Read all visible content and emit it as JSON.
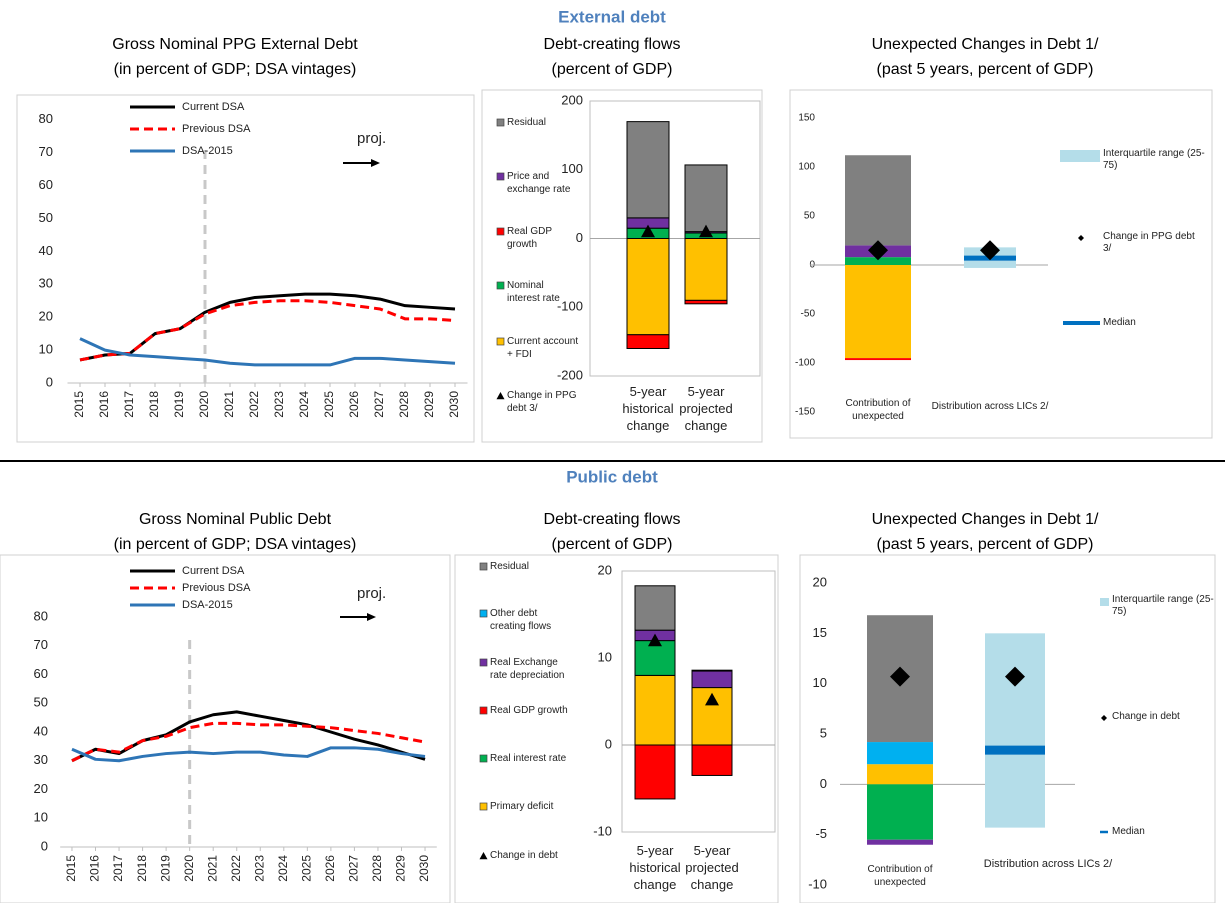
{
  "sections": [
    "External debt",
    "Public debt"
  ],
  "chart_data": [
    {
      "type": "line",
      "title": "Gross Nominal PPG External Debt",
      "subtitle": "(in percent of GDP; DSA vintages)",
      "x": [
        2015,
        2016,
        2017,
        2018,
        2019,
        2020,
        2021,
        2022,
        2023,
        2024,
        2025,
        2026,
        2027,
        2028,
        2029,
        2030
      ],
      "xlim": [
        2014.5,
        2030.5
      ],
      "ylim": [
        0,
        86
      ],
      "yticks": [
        0,
        10,
        20,
        30,
        40,
        50,
        60,
        70,
        80
      ],
      "series": [
        {
          "name": "Current DSA",
          "color": "#000000",
          "dash": false,
          "values": [
            7,
            8.5,
            9,
            15,
            16.5,
            21.5,
            24.5,
            26,
            26.5,
            27,
            27,
            26.5,
            25.5,
            23.5,
            23,
            22.5
          ]
        },
        {
          "name": "Previous DSA",
          "color": "#ff0000",
          "dash": true,
          "values": [
            7,
            8.5,
            9,
            15,
            16.5,
            21,
            23.5,
            24.5,
            25,
            25,
            24.5,
            23.5,
            22.5,
            19.5,
            19.5,
            19
          ]
        },
        {
          "name": "DSA-2015",
          "color": "#2e75b6",
          "dash": false,
          "values": [
            13.5,
            10,
            8.5,
            8,
            7.5,
            7,
            6,
            5.5,
            5.5,
            5.5,
            5.5,
            7.5,
            7.5,
            7,
            6.5,
            6
          ]
        }
      ],
      "projection_start": 2020,
      "annotation": "proj."
    },
    {
      "type": "stacked-bar",
      "title": "Debt-creating flows",
      "subtitle": "(percent of GDP)",
      "categories": [
        "5-year historical change",
        "5-year projected change"
      ],
      "ylim": [
        -200,
        200
      ],
      "yticks": [
        -200,
        -100,
        0,
        100,
        200
      ],
      "series": [
        {
          "name": "Residual",
          "color": "#808080",
          "values": [
            140,
            97
          ]
        },
        {
          "name": "Price and exchange rate",
          "color": "#7030a0",
          "values": [
            15,
            2
          ]
        },
        {
          "name": "Real GDP growth",
          "color": "#ff0000",
          "values": [
            -20,
            -5
          ]
        },
        {
          "name": "Nominal interest rate",
          "color": "#00b050",
          "values": [
            15,
            8
          ]
        },
        {
          "name": "Current account + FDI",
          "color": "#ffc000",
          "values": [
            -140,
            -90
          ]
        }
      ],
      "markers": {
        "name": "Change in PPG debt 3/",
        "color": "#000000",
        "values": [
          10,
          10
        ]
      }
    },
    {
      "type": "unexpected",
      "title": "Unexpected Changes in Debt 1/",
      "subtitle": "(past 5 years, percent of GDP)",
      "categories": [
        "Contribution of unexpected",
        "Distribution across LICs 2/"
      ],
      "ylim": [
        -150,
        150
      ],
      "yticks": [
        -150,
        -100,
        -50,
        0,
        50,
        100,
        150
      ],
      "stack": {
        "colors": [
          "#00b050",
          "#7030a0",
          "#808080",
          "#ffc000",
          "#ff0000"
        ],
        "values": [
          8,
          12,
          92,
          -95,
          -2
        ]
      },
      "iqr": {
        "name": "Interquartile range (25-75)",
        "color": "#b4dde9",
        "values": [
          -3,
          18
        ]
      },
      "median": {
        "name": "Median",
        "color": "#0070c0",
        "value": 7
      },
      "change": {
        "name": "Change in PPG debt 3/",
        "color": "#000000",
        "values": [
          15,
          15
        ]
      }
    },
    {
      "type": "line",
      "title": "Gross Nominal Public Debt",
      "subtitle": "(in percent of GDP; DSA vintages)",
      "x": [
        2015,
        2016,
        2017,
        2018,
        2019,
        2020,
        2021,
        2022,
        2023,
        2024,
        2025,
        2026,
        2027,
        2028,
        2029,
        2030
      ],
      "xlim": [
        2014.5,
        2030.5
      ],
      "ylim": [
        0,
        100
      ],
      "yticks": [
        0,
        10,
        20,
        30,
        40,
        50,
        60,
        70,
        80
      ],
      "series": [
        {
          "name": "Current DSA",
          "color": "#000000",
          "dash": false,
          "values": [
            30,
            34,
            32.5,
            37,
            39,
            43.5,
            46,
            47,
            45.5,
            44,
            42.5,
            40,
            37.5,
            35.5,
            33,
            30.5
          ]
        },
        {
          "name": "Previous DSA",
          "color": "#ff0000",
          "dash": true,
          "values": [
            30,
            34,
            33,
            37,
            38.5,
            41.5,
            43,
            43,
            42.5,
            42.5,
            42,
            41.5,
            40.5,
            39.5,
            38,
            36.5
          ]
        },
        {
          "name": "DSA-2015",
          "color": "#2e75b6",
          "dash": false,
          "values": [
            34,
            30.5,
            30,
            31.5,
            32.5,
            33,
            32.5,
            33,
            33,
            32,
            31.5,
            34.5,
            34.5,
            34,
            32.5,
            31.5
          ]
        }
      ],
      "projection_start": 2020,
      "annotation": "proj."
    },
    {
      "type": "stacked-bar",
      "title": "Debt-creating flows",
      "subtitle": "(percent of GDP)",
      "categories": [
        "5-year historical change",
        "5-year projected change"
      ],
      "ylim": [
        -10,
        20
      ],
      "yticks": [
        -10,
        0,
        10,
        20
      ],
      "series": [
        {
          "name": "Residual",
          "color": "#808080",
          "values": [
            5.1,
            0.1
          ]
        },
        {
          "name": "Other debt creating flows",
          "color": "#00b0f0",
          "values": [
            0,
            0
          ]
        },
        {
          "name": "Real Exchange rate depreciation",
          "color": "#7030a0",
          "values": [
            1.2,
            1.9
          ]
        },
        {
          "name": "Real GDP growth",
          "color": "#ff0000",
          "values": [
            -6.2,
            -3.5
          ]
        },
        {
          "name": "Real interest rate",
          "color": "#00b050",
          "values": [
            4,
            0
          ]
        },
        {
          "name": "Primary deficit",
          "color": "#ffc000",
          "values": [
            8,
            6.6
          ]
        }
      ],
      "markers": {
        "name": "Change in debt",
        "color": "#000000",
        "values": [
          12,
          5.2
        ]
      }
    },
    {
      "type": "unexpected",
      "title": "Unexpected Changes in Debt 1/",
      "subtitle": "(past 5 years, percent of GDP)",
      "categories": [
        "Contribution of unexpected",
        "Distribution across LICs 2/"
      ],
      "ylim": [
        -10,
        20
      ],
      "yticks": [
        -10,
        -5,
        0,
        5,
        10,
        15,
        20
      ],
      "stack": {
        "colors": [
          "#ffc000",
          "#00b0f0",
          "#808080",
          "#00b050",
          "#7030a0"
        ],
        "values": [
          2,
          2.2,
          12.6,
          -5.5,
          -0.5
        ]
      },
      "iqr": {
        "name": "Interquartile range (25-75)",
        "color": "#b4dde9",
        "values": [
          -4.3,
          15
        ]
      },
      "median": {
        "name": "Median",
        "color": "#0070c0",
        "value": 3.4
      },
      "change": {
        "name": "Change in debt",
        "color": "#000000",
        "values": [
          10.7,
          10.7
        ]
      }
    }
  ]
}
